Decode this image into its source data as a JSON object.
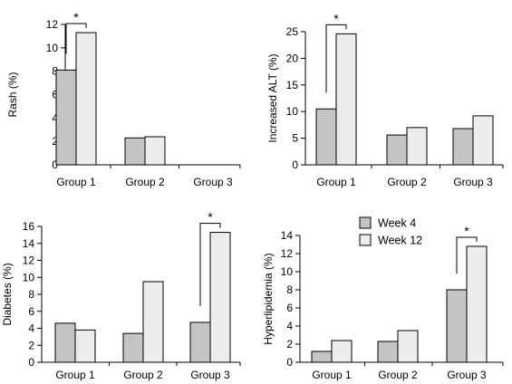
{
  "colors": {
    "week4": "#c4c4c4",
    "week12": "#ececec",
    "stroke": "#000000"
  },
  "legend": {
    "items": [
      {
        "label": "Week 4",
        "color": "#c4c4c4"
      },
      {
        "label": "Week 12",
        "color": "#ececec"
      }
    ]
  },
  "chart_data": [
    {
      "type": "bar",
      "ylabel": "Rash (%)",
      "ylim": [
        0,
        12
      ],
      "yticks": [
        0,
        2,
        4,
        6,
        8,
        10,
        12
      ],
      "categories": [
        "Group 1",
        "Group 2",
        "Group 3"
      ],
      "series": [
        {
          "name": "Week 4",
          "values": [
            8.1,
            2.3,
            0
          ]
        },
        {
          "name": "Week 12",
          "values": [
            11.3,
            2.4,
            0
          ]
        }
      ],
      "significance": [
        {
          "category": 0,
          "label": "*"
        }
      ]
    },
    {
      "type": "bar",
      "ylabel": "Increased ALT (%)",
      "ylim": [
        0,
        25
      ],
      "yticks": [
        0,
        5,
        10,
        15,
        20,
        25
      ],
      "categories": [
        "Group 1",
        "Group 2",
        "Group 3"
      ],
      "series": [
        {
          "name": "Week 4",
          "values": [
            10.5,
            5.6,
            6.8
          ]
        },
        {
          "name": "Week 12",
          "values": [
            24.6,
            7.0,
            9.2
          ]
        }
      ],
      "significance": [
        {
          "category": 0,
          "label": "*"
        }
      ]
    },
    {
      "type": "bar",
      "ylabel": "Diabetes (%)",
      "ylim": [
        0,
        16
      ],
      "yticks": [
        0,
        2,
        4,
        6,
        8,
        10,
        12,
        14,
        16
      ],
      "categories": [
        "Group 1",
        "Group 2",
        "Group 3"
      ],
      "series": [
        {
          "name": "Week 4",
          "values": [
            4.6,
            3.4,
            4.7
          ]
        },
        {
          "name": "Week 12",
          "values": [
            3.8,
            9.5,
            15.3
          ]
        }
      ],
      "significance": [
        {
          "category": 2,
          "label": "*"
        }
      ]
    },
    {
      "type": "bar",
      "ylabel": "Hyperlipidemia (%)",
      "ylim": [
        0,
        14
      ],
      "yticks": [
        0,
        2,
        4,
        6,
        8,
        10,
        12,
        14
      ],
      "categories": [
        "Group 1",
        "Group 2",
        "Group 3"
      ],
      "series": [
        {
          "name": "Week 4",
          "values": [
            1.2,
            2.3,
            8.0
          ]
        },
        {
          "name": "Week 12",
          "values": [
            2.4,
            3.5,
            12.8
          ]
        }
      ],
      "significance": [
        {
          "category": 2,
          "label": "*"
        }
      ]
    }
  ]
}
